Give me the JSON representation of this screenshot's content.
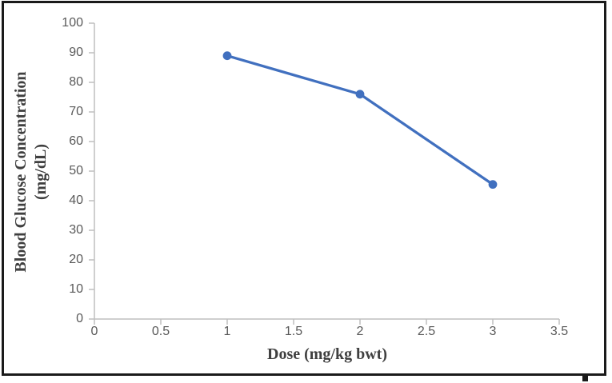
{
  "chart_data": {
    "type": "line",
    "title": "",
    "xlabel": "Dose (mg/kg bwt)",
    "ylabel_line1": "Blood Glucose Concentration",
    "ylabel_line2": "(mg/dL)",
    "x": [
      1,
      2,
      3
    ],
    "values": [
      89,
      76,
      45.5
    ],
    "xlim": [
      0,
      3.5
    ],
    "ylim": [
      0,
      100
    ],
    "x_tick_values": [
      0,
      0.5,
      1,
      1.5,
      2,
      2.5,
      3,
      3.5
    ],
    "x_tick_labels": [
      "0",
      "0.5",
      "1",
      "1.5",
      "2",
      "2.5",
      "3",
      "3.5"
    ],
    "y_tick_values": [
      0,
      10,
      20,
      30,
      40,
      50,
      60,
      70,
      80,
      90,
      100
    ],
    "y_tick_labels": [
      "0",
      "10",
      "20",
      "30",
      "40",
      "50",
      "60",
      "70",
      "80",
      "90",
      "100"
    ],
    "grid": false,
    "legend": "none",
    "marker": "circle",
    "colors": {
      "series": "#4170bf",
      "axis_line": "#bfbfbf",
      "tick_label": "#595959",
      "axis_title": "#3f3f3f",
      "frame_border": "#1a1a1a"
    }
  }
}
